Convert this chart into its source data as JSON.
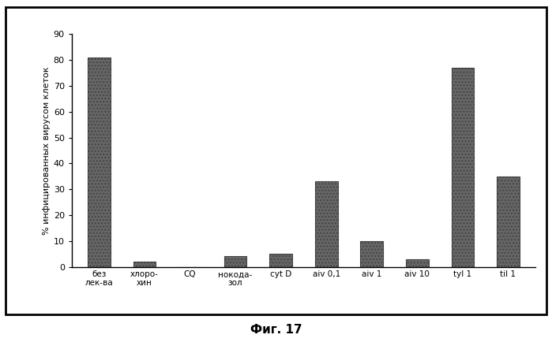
{
  "categories": [
    "без\nлек-ва",
    "хлоро-\nхин",
    "CQ",
    "нокода-\nзол",
    "cyt D",
    "aiv 0,1",
    "aiv 1",
    "aiv 10",
    "tyl 1",
    "til 1"
  ],
  "values": [
    81,
    2,
    0,
    4,
    5,
    33,
    10,
    3,
    77,
    35
  ],
  "bar_color": "#666666",
  "ylabel": "% инфицированных вирусом клеток",
  "ylim": [
    0,
    90
  ],
  "yticks": [
    0,
    10,
    20,
    30,
    40,
    50,
    60,
    70,
    80,
    90
  ],
  "caption": "Фиг. 17",
  "background_color": "#ffffff",
  "fig_width": 6.99,
  "fig_height": 4.34,
  "dpi": 100
}
